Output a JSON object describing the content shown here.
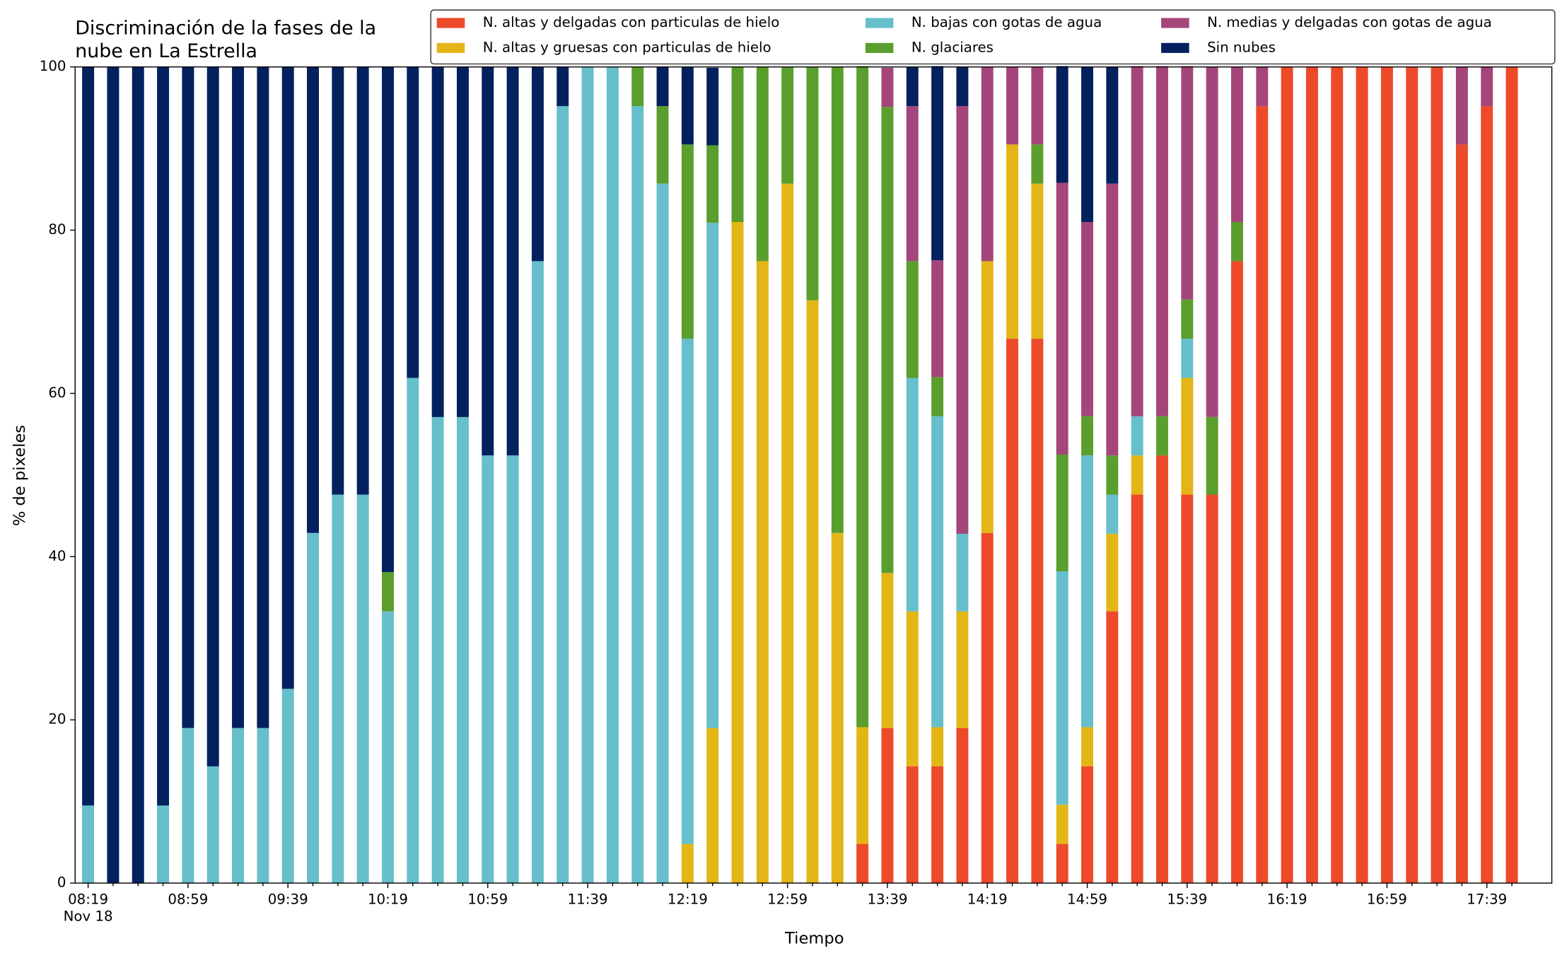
{
  "chart_data": {
    "type": "stacked_bar",
    "title": [
      "Discriminación de la fases de la",
      "nube en La Estrella"
    ],
    "x_label": "Tiempo",
    "y_label": "% de pixeles",
    "date_label": "Nov 18",
    "categories": [
      "08:19",
      null,
      null,
      null,
      "08:59",
      null,
      null,
      null,
      "09:39",
      null,
      null,
      null,
      "10:19",
      null,
      null,
      null,
      "10:59",
      null,
      null,
      null,
      "11:39",
      null,
      null,
      null,
      "12:19",
      null,
      null,
      null,
      "12:59",
      null,
      null,
      null,
      "13:39",
      null,
      null,
      null,
      "14:19",
      null,
      null,
      null,
      "14:59",
      null,
      null,
      null,
      "15:39",
      null,
      null,
      null,
      "16:19",
      null,
      null,
      null,
      "16:59",
      null,
      null,
      null,
      "17:39",
      null
    ],
    "ylim": [
      0,
      100
    ],
    "yticks": [
      0,
      20,
      40,
      60,
      80,
      100
    ],
    "legend": "top-right",
    "series": [
      {
        "name": "N. altas y delgadas con particulas de hielo",
        "color": "#ec4a2a",
        "values": [
          0,
          0,
          0,
          0,
          0,
          0,
          0,
          0,
          0,
          0,
          0,
          0,
          0,
          0,
          0,
          0,
          0,
          0,
          0,
          0,
          0,
          0,
          0,
          0,
          0,
          0,
          0,
          0,
          0,
          0,
          0,
          4.8,
          19,
          14.3,
          14.3,
          19,
          42.9,
          66.7,
          66.7,
          4.8,
          14.3,
          33.3,
          47.6,
          52.4,
          47.6,
          47.6,
          76.2,
          95.2,
          100,
          100,
          100,
          100,
          100,
          100,
          100,
          90.5,
          95.2,
          100
        ]
      },
      {
        "name": "N. altas y gruesas con particulas de hielo",
        "color": "#e3b516",
        "values": [
          0,
          0,
          0,
          0,
          0,
          0,
          0,
          0,
          0,
          0,
          0,
          0,
          0,
          0,
          0,
          0,
          0,
          0,
          0,
          0,
          0,
          0,
          0,
          0,
          4.8,
          19,
          81,
          76.2,
          85.7,
          71.4,
          42.9,
          14.3,
          19,
          19,
          4.8,
          14.3,
          33.3,
          23.8,
          19,
          4.8,
          4.8,
          9.5,
          4.8,
          0,
          14.3,
          0,
          0,
          0,
          0,
          0,
          0,
          0,
          0,
          0,
          0,
          0,
          0,
          0
        ]
      },
      {
        "name": "N. bajas con gotas de agua",
        "color": "#66bfca",
        "values": [
          9.5,
          0,
          0,
          9.5,
          19,
          14.3,
          19,
          19,
          23.8,
          42.9,
          47.6,
          47.6,
          33.3,
          61.9,
          57.1,
          57.1,
          52.4,
          52.4,
          76.2,
          95.2,
          100,
          100,
          95.2,
          85.7,
          61.9,
          61.9,
          0,
          0,
          0,
          0,
          0,
          0,
          0,
          28.6,
          38.1,
          9.5,
          0,
          0,
          0,
          28.6,
          33.3,
          4.8,
          4.8,
          0,
          4.8,
          0,
          0,
          0,
          0,
          0,
          0,
          0,
          0,
          0,
          0,
          0,
          0,
          0
        ]
      },
      {
        "name": "N. glaciares",
        "color": "#5a9e2e",
        "values": [
          0,
          0,
          0,
          0,
          0,
          0,
          0,
          0,
          0,
          0,
          0,
          0,
          4.8,
          0,
          0,
          0,
          0,
          0,
          0,
          0,
          0,
          0,
          4.8,
          9.5,
          23.8,
          9.5,
          19,
          23.8,
          14.3,
          28.6,
          57.1,
          81,
          57.1,
          14.3,
          4.8,
          0,
          0,
          0,
          4.8,
          14.3,
          4.8,
          4.8,
          0,
          4.8,
          4.8,
          9.5,
          4.8,
          0,
          0,
          0,
          0,
          0,
          0,
          0,
          0,
          0,
          0,
          0
        ]
      },
      {
        "name": "N. medias y delgadas con gotas de agua",
        "color": "#a4467a",
        "values": [
          0,
          0,
          0,
          0,
          0,
          0,
          0,
          0,
          0,
          0,
          0,
          0,
          0,
          0,
          0,
          0,
          0,
          0,
          0,
          0,
          0,
          0,
          0,
          0,
          0,
          0,
          0,
          0,
          0,
          0,
          0,
          0,
          4.8,
          19,
          14.3,
          52.4,
          23.8,
          9.5,
          9.5,
          33.3,
          23.8,
          33.3,
          42.9,
          42.9,
          28.6,
          42.9,
          19,
          4.8,
          0,
          0,
          0,
          0,
          0,
          0,
          0,
          9.5,
          4.8,
          0
        ]
      },
      {
        "name": "Sin nubes",
        "color": "#03215f",
        "values": [
          90.5,
          100,
          100,
          90.5,
          81,
          85.7,
          81,
          81,
          76.2,
          57.1,
          52.4,
          52.4,
          61.9,
          38.1,
          42.9,
          42.9,
          47.6,
          47.6,
          23.8,
          4.8,
          0,
          0,
          0,
          4.8,
          9.5,
          9.5,
          0,
          0,
          0,
          0,
          0,
          0,
          0,
          4.8,
          23.8,
          4.8,
          0,
          0,
          0,
          14.3,
          19,
          14.3,
          0,
          0,
          0,
          0,
          0,
          0,
          0,
          0,
          0,
          0,
          0,
          0,
          0,
          0,
          0,
          0
        ]
      }
    ]
  }
}
